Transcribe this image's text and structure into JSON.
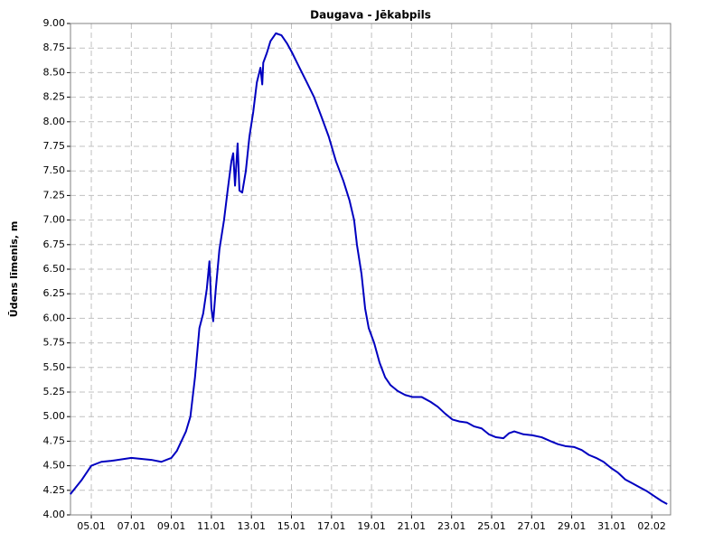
{
  "chart_data": {
    "type": "line",
    "title": "Daugava - Jēkabpils",
    "y_label": "Ūdens līmenis, m",
    "x": [
      3.95,
      4.5,
      5.0,
      5.5,
      6.0,
      7.0,
      8.0,
      8.5,
      9.0,
      9.27,
      9.73,
      9.95,
      10.18,
      10.4,
      10.59,
      10.77,
      10.9,
      11.0,
      11.09,
      11.22,
      11.4,
      11.63,
      11.81,
      12.0,
      12.09,
      12.18,
      12.31,
      12.4,
      12.54,
      12.72,
      12.9,
      13.09,
      13.27,
      13.45,
      13.54,
      13.59,
      13.77,
      13.95,
      14.22,
      14.5,
      14.77,
      15.04,
      15.4,
      15.77,
      16.13,
      16.5,
      16.86,
      17.22,
      17.59,
      17.9,
      18.13,
      18.27,
      18.5,
      18.68,
      18.86,
      19.13,
      19.4,
      19.68,
      19.95,
      20.31,
      20.68,
      21.04,
      21.5,
      21.95,
      22.31,
      22.68,
      23.04,
      23.4,
      23.77,
      24.13,
      24.5,
      24.86,
      25.22,
      25.59,
      25.86,
      26.13,
      26.59,
      27.04,
      27.5,
      27.95,
      28.31,
      28.68,
      29.13,
      29.5,
      29.86,
      30.22,
      30.59,
      30.95,
      31.31,
      31.68,
      32.04,
      32.4,
      32.77,
      33.13,
      33.5,
      33.77
    ],
    "series": [
      {
        "name": "Daugava - Jēkabpils",
        "color": "#0000c0",
        "values": [
          4.21,
          4.35,
          4.5,
          4.54,
          4.55,
          4.58,
          4.56,
          4.54,
          4.58,
          4.65,
          4.85,
          5.0,
          5.4,
          5.9,
          6.05,
          6.3,
          6.58,
          6.1,
          5.97,
          6.3,
          6.7,
          7.0,
          7.3,
          7.6,
          7.68,
          7.35,
          7.78,
          7.3,
          7.28,
          7.5,
          7.85,
          8.1,
          8.4,
          8.55,
          8.38,
          8.6,
          8.7,
          8.82,
          8.9,
          8.88,
          8.8,
          8.7,
          8.55,
          8.4,
          8.25,
          8.05,
          7.85,
          7.6,
          7.4,
          7.2,
          7.0,
          6.75,
          6.45,
          6.1,
          5.9,
          5.75,
          5.55,
          5.4,
          5.32,
          5.26,
          5.22,
          5.2,
          5.2,
          5.15,
          5.1,
          5.03,
          4.97,
          4.95,
          4.94,
          4.9,
          4.88,
          4.82,
          4.79,
          4.78,
          4.83,
          4.85,
          4.82,
          4.81,
          4.79,
          4.75,
          4.72,
          4.7,
          4.69,
          4.66,
          4.61,
          4.58,
          4.54,
          4.48,
          4.43,
          4.36,
          4.32,
          4.28,
          4.24,
          4.19,
          4.14,
          4.11
        ]
      }
    ],
    "xlim": [
      3.96,
      33.94
    ],
    "ylim": [
      4.0,
      9.0
    ],
    "xticks": [
      {
        "value": 5,
        "label": "05.01"
      },
      {
        "value": 7,
        "label": "07.01"
      },
      {
        "value": 9,
        "label": "09.01"
      },
      {
        "value": 11,
        "label": "11.01"
      },
      {
        "value": 13,
        "label": "13.01"
      },
      {
        "value": 15,
        "label": "15.01"
      },
      {
        "value": 17,
        "label": "17.01"
      },
      {
        "value": 19,
        "label": "19.01"
      },
      {
        "value": 21,
        "label": "21.01"
      },
      {
        "value": 23,
        "label": "23.01"
      },
      {
        "value": 25,
        "label": "25.01"
      },
      {
        "value": 27,
        "label": "27.01"
      },
      {
        "value": 29,
        "label": "29.01"
      },
      {
        "value": 31,
        "label": "31.01"
      },
      {
        "value": 33,
        "label": "02.02"
      }
    ],
    "yticks": [
      {
        "value": 4.0,
        "label": "4.00"
      },
      {
        "value": 4.25,
        "label": "4.25"
      },
      {
        "value": 4.5,
        "label": "4.50"
      },
      {
        "value": 4.75,
        "label": "4.75"
      },
      {
        "value": 5.0,
        "label": "5.00"
      },
      {
        "value": 5.25,
        "label": "5.25"
      },
      {
        "value": 5.5,
        "label": "5.50"
      },
      {
        "value": 5.75,
        "label": "5.75"
      },
      {
        "value": 6.0,
        "label": "6.00"
      },
      {
        "value": 6.25,
        "label": "6.25"
      },
      {
        "value": 6.5,
        "label": "6.50"
      },
      {
        "value": 6.75,
        "label": "6.75"
      },
      {
        "value": 7.0,
        "label": "7.00"
      },
      {
        "value": 7.25,
        "label": "7.25"
      },
      {
        "value": 7.5,
        "label": "7.50"
      },
      {
        "value": 7.75,
        "label": "7.75"
      },
      {
        "value": 8.0,
        "label": "8.00"
      },
      {
        "value": 8.25,
        "label": "8.25"
      },
      {
        "value": 8.5,
        "label": "8.50"
      },
      {
        "value": 8.75,
        "label": "8.75"
      },
      {
        "value": 9.0,
        "label": "9.00"
      }
    ],
    "grid": true
  }
}
